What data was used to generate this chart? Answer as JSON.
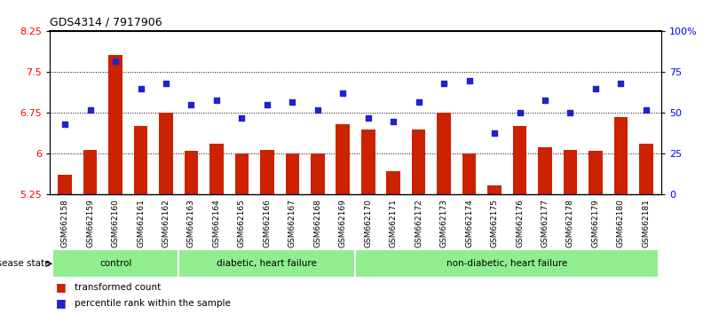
{
  "title": "GDS4314 / 7917906",
  "samples": [
    "GSM662158",
    "GSM662159",
    "GSM662160",
    "GSM662161",
    "GSM662162",
    "GSM662163",
    "GSM662164",
    "GSM662165",
    "GSM662166",
    "GSM662167",
    "GSM662168",
    "GSM662169",
    "GSM662170",
    "GSM662171",
    "GSM662172",
    "GSM662173",
    "GSM662174",
    "GSM662175",
    "GSM662176",
    "GSM662177",
    "GSM662178",
    "GSM662179",
    "GSM662180",
    "GSM662181"
  ],
  "bar_values": [
    5.62,
    6.08,
    7.82,
    6.52,
    6.75,
    6.05,
    6.18,
    6.0,
    6.08,
    6.0,
    6.0,
    6.55,
    6.45,
    5.68,
    6.45,
    6.75,
    6.0,
    5.42,
    6.52,
    6.12,
    6.08,
    6.05,
    6.68,
    6.18
  ],
  "percentile_values": [
    43,
    52,
    82,
    65,
    68,
    55,
    58,
    47,
    55,
    57,
    52,
    62,
    47,
    45,
    57,
    68,
    70,
    38,
    50,
    58,
    50,
    65,
    68,
    52
  ],
  "bar_color": "#cc2200",
  "dot_color": "#2222cc",
  "ylim_left": [
    5.25,
    8.25
  ],
  "ylim_right": [
    0,
    100
  ],
  "yticks_left": [
    5.25,
    6.0,
    6.75,
    7.5,
    8.25
  ],
  "yticks_right": [
    0,
    25,
    50,
    75,
    100
  ],
  "ytick_labels_left": [
    "5.25",
    "6",
    "6.75",
    "7.5",
    "8.25"
  ],
  "ytick_labels_right": [
    "0",
    "25",
    "50",
    "75",
    "100%"
  ],
  "grid_values": [
    6.0,
    6.75,
    7.5
  ],
  "legend_bar": "transformed count",
  "legend_dot": "percentile rank within the sample",
  "disease_state_label": "disease state",
  "group_labels": [
    "control",
    "diabetic, heart failure",
    "non-diabetic, heart failure"
  ],
  "group_boundaries": [
    0,
    5,
    12,
    24
  ],
  "group_color": "#90ee90",
  "xticklabel_bg": "#d4d4d4"
}
